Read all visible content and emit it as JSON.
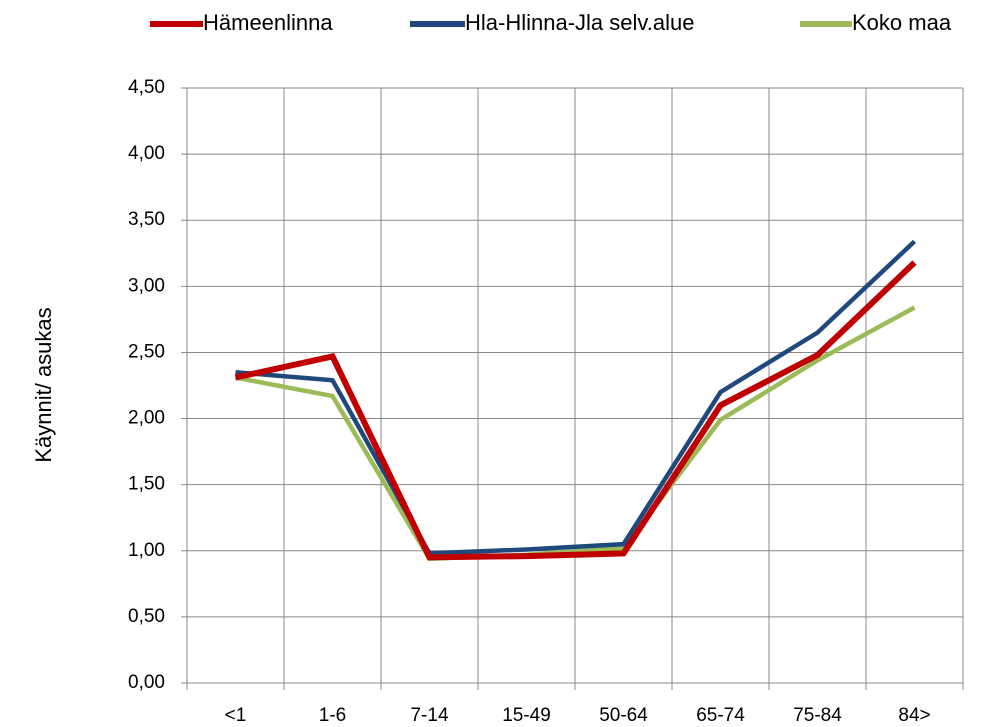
{
  "chart_data": {
    "type": "line",
    "y_label": "Käynnit/ asukas",
    "categories": [
      "<1",
      "1-6",
      "7-14",
      "15-49",
      "50-64",
      "65-74",
      "75-84",
      "84>"
    ],
    "series": [
      {
        "name": "Hämeenlinna",
        "color": "#c00000",
        "values": [
          2.31,
          2.47,
          0.95,
          0.96,
          0.98,
          2.1,
          2.48,
          3.18
        ]
      },
      {
        "name": "Hla-Hlinna-Jla selv.alue",
        "color": "#1f497d",
        "values": [
          2.35,
          2.29,
          0.98,
          1.01,
          1.05,
          2.2,
          2.65,
          3.34
        ]
      },
      {
        "name": "Koko maa",
        "color": "#9bbb59",
        "values": [
          2.31,
          2.17,
          0.94,
          0.97,
          1.02,
          1.99,
          2.44,
          2.84
        ]
      }
    ],
    "ylim": [
      0,
      4.5
    ],
    "yticks": [
      {
        "value": 0,
        "label": "0,00"
      },
      {
        "value": 0.5,
        "label": "0,50"
      },
      {
        "value": 1,
        "label": "1,00"
      },
      {
        "value": 1.5,
        "label": "1,50"
      },
      {
        "value": 2,
        "label": "2,00"
      },
      {
        "value": 2.5,
        "label": "2,50"
      },
      {
        "value": 3,
        "label": "3,00"
      },
      {
        "value": 3.5,
        "label": "3,50"
      },
      {
        "value": 4,
        "label": "4,00"
      },
      {
        "value": 4.5,
        "label": "4,50"
      }
    ],
    "grid": true,
    "legend": "top"
  }
}
